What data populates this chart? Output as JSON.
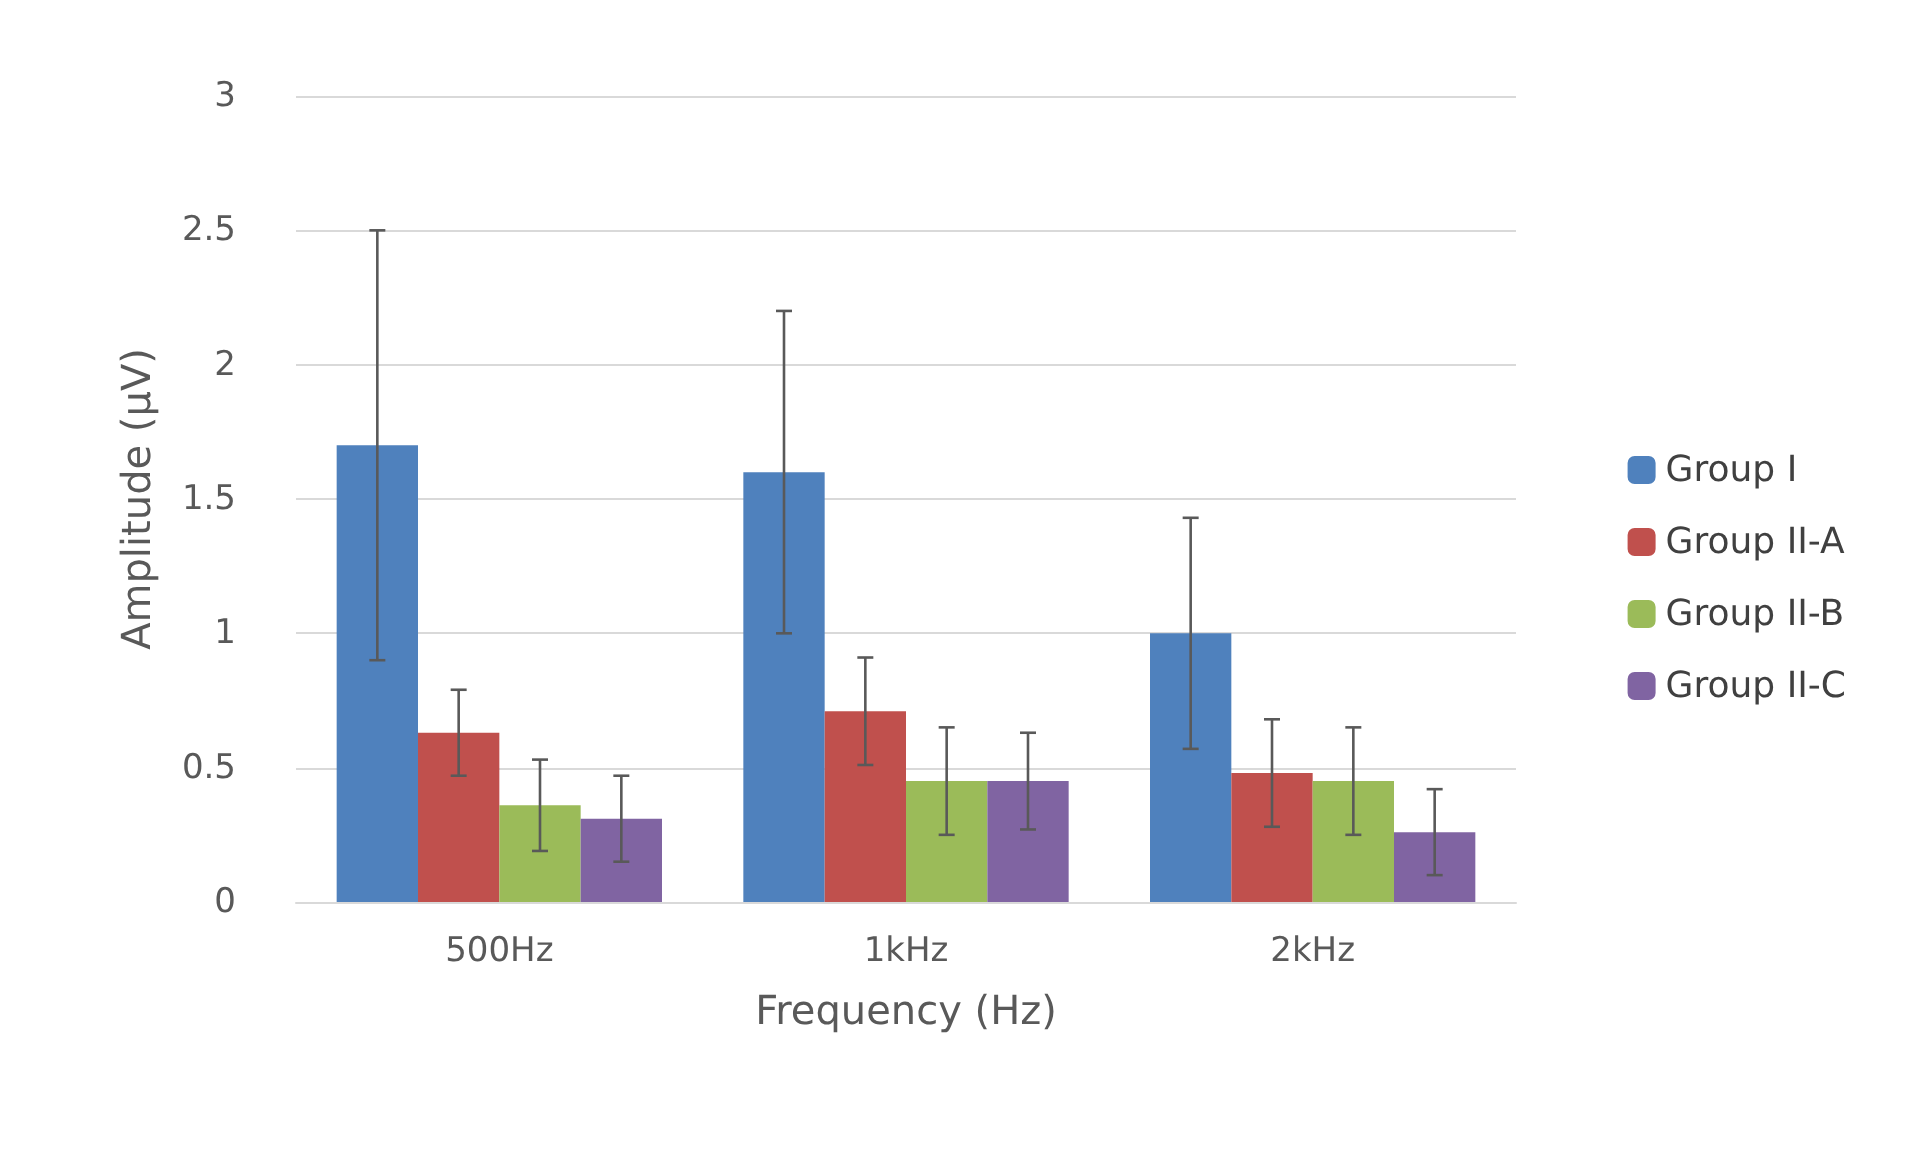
{
  "chart_data": {
    "type": "bar",
    "xlabel": "Frequency (Hz)",
    "ylabel": "Amplitude (µV)",
    "categories": [
      "500Hz",
      "1kHz",
      "2kHz"
    ],
    "series": [
      {
        "name": "Group I",
        "color": "#4f81bd",
        "values": [
          1.7,
          1.6,
          1.0
        ],
        "errors": [
          0.8,
          0.6,
          0.43
        ]
      },
      {
        "name": "Group II-A",
        "color": "#c0504d",
        "values": [
          0.63,
          0.71,
          0.48
        ],
        "errors": [
          0.16,
          0.2,
          0.2
        ]
      },
      {
        "name": "Group II-B",
        "color": "#9bbb59",
        "values": [
          0.36,
          0.45,
          0.45
        ],
        "errors": [
          0.17,
          0.2,
          0.2
        ]
      },
      {
        "name": "Group II-C",
        "color": "#8064a2",
        "values": [
          0.31,
          0.45,
          0.26
        ],
        "errors": [
          0.16,
          0.18,
          0.16
        ]
      }
    ],
    "ylim": [
      0,
      3
    ],
    "yticks": [
      0,
      0.5,
      1,
      1.5,
      2,
      2.5,
      3
    ],
    "grid": "y",
    "legend": "right"
  }
}
